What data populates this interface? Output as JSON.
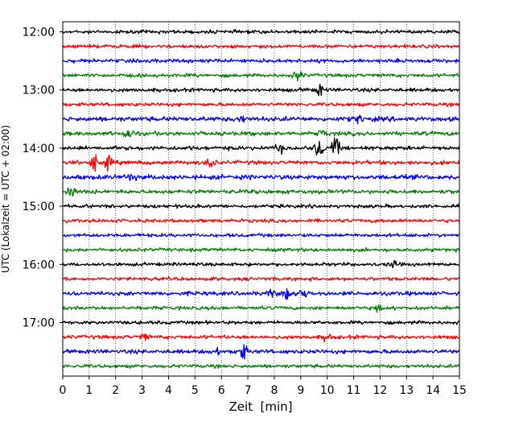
{
  "chart_data": {
    "type": "line",
    "title": "",
    "xlabel": "Zeit  [min]",
    "ylabel": "UTC (Lokalzeit = UTC + 02:00)",
    "xlim": [
      0,
      15
    ],
    "x_ticks": [
      "0",
      "1",
      "2",
      "3",
      "4",
      "5",
      "6",
      "7",
      "8",
      "9",
      "10",
      "11",
      "12",
      "13",
      "14",
      "15"
    ],
    "y_tick_labels": [
      "12:00",
      "13:00",
      "14:00",
      "15:00",
      "16:00",
      "17:00"
    ],
    "grid": "vertical dotted lines at each minute",
    "trace_interval_min": 15,
    "trace_colors": [
      "#000000",
      "#ff0000",
      "#0000ff",
      "#008000"
    ],
    "series": [
      {
        "start": "12:00",
        "color": "#000000",
        "amplitude": 0.3,
        "events": []
      },
      {
        "start": "12:15",
        "color": "#ff0000",
        "amplitude": 0.3,
        "events": []
      },
      {
        "start": "12:30",
        "color": "#0000ff",
        "amplitude": 0.32,
        "events": []
      },
      {
        "start": "12:45",
        "color": "#008000",
        "amplitude": 0.3,
        "events": [
          {
            "x": 8.9,
            "amp": 0.9
          }
        ]
      },
      {
        "start": "13:00",
        "color": "#000000",
        "amplitude": 0.32,
        "events": [
          {
            "x": 9.7,
            "amp": 0.9
          }
        ]
      },
      {
        "start": "13:15",
        "color": "#ff0000",
        "amplitude": 0.3,
        "events": []
      },
      {
        "start": "13:30",
        "color": "#0000ff",
        "amplitude": 0.4,
        "events": [
          {
            "x": 6.7,
            "amp": 0.6
          },
          {
            "x": 11.2,
            "amp": 0.6
          }
        ]
      },
      {
        "start": "13:45",
        "color": "#008000",
        "amplitude": 0.35,
        "events": [
          {
            "x": 2.5,
            "amp": 1.0
          },
          {
            "x": 9.8,
            "amp": 0.6
          }
        ]
      },
      {
        "start": "14:00",
        "color": "#000000",
        "amplitude": 0.35,
        "events": [
          {
            "x": 9.7,
            "amp": 1.8
          },
          {
            "x": 10.3,
            "amp": 1.6
          },
          {
            "x": 8.2,
            "amp": 0.6
          }
        ]
      },
      {
        "start": "14:15",
        "color": "#ff0000",
        "amplitude": 0.35,
        "events": [
          {
            "x": 1.2,
            "amp": 1.2
          },
          {
            "x": 1.7,
            "amp": 1.0
          },
          {
            "x": 5.6,
            "amp": 1.0
          }
        ]
      },
      {
        "start": "14:30",
        "color": "#0000ff",
        "amplitude": 0.4,
        "events": [
          {
            "x": 2.6,
            "amp": 0.5
          }
        ]
      },
      {
        "start": "14:45",
        "color": "#008000",
        "amplitude": 0.35,
        "events": [
          {
            "x": 0.3,
            "amp": 0.8
          }
        ]
      },
      {
        "start": "15:00",
        "color": "#000000",
        "amplitude": 0.3,
        "events": []
      },
      {
        "start": "15:15",
        "color": "#ff0000",
        "amplitude": 0.3,
        "events": []
      },
      {
        "start": "15:30",
        "color": "#0000ff",
        "amplitude": 0.3,
        "events": []
      },
      {
        "start": "15:45",
        "color": "#008000",
        "amplitude": 0.3,
        "events": []
      },
      {
        "start": "16:00",
        "color": "#000000",
        "amplitude": 0.3,
        "events": [
          {
            "x": 12.5,
            "amp": 0.5
          }
        ]
      },
      {
        "start": "16:15",
        "color": "#ff0000",
        "amplitude": 0.3,
        "events": []
      },
      {
        "start": "16:30",
        "color": "#0000ff",
        "amplitude": 0.35,
        "events": [
          {
            "x": 8.5,
            "amp": 1.0
          },
          {
            "x": 9.1,
            "amp": 0.9
          },
          {
            "x": 7.9,
            "amp": 0.6
          }
        ]
      },
      {
        "start": "16:45",
        "color": "#008000",
        "amplitude": 0.3,
        "events": [
          {
            "x": 11.9,
            "amp": 0.5
          }
        ]
      },
      {
        "start": "17:00",
        "color": "#000000",
        "amplitude": 0.3,
        "events": []
      },
      {
        "start": "17:15",
        "color": "#ff0000",
        "amplitude": 0.32,
        "events": [
          {
            "x": 3.1,
            "amp": 0.5
          },
          {
            "x": 10.0,
            "amp": 0.6
          }
        ]
      },
      {
        "start": "17:30",
        "color": "#0000ff",
        "amplitude": 0.35,
        "events": [
          {
            "x": 6.8,
            "amp": 1.4
          },
          {
            "x": 5.8,
            "amp": 0.6
          }
        ]
      },
      {
        "start": "17:45",
        "color": "#008000",
        "amplitude": 0.3,
        "events": []
      }
    ]
  }
}
